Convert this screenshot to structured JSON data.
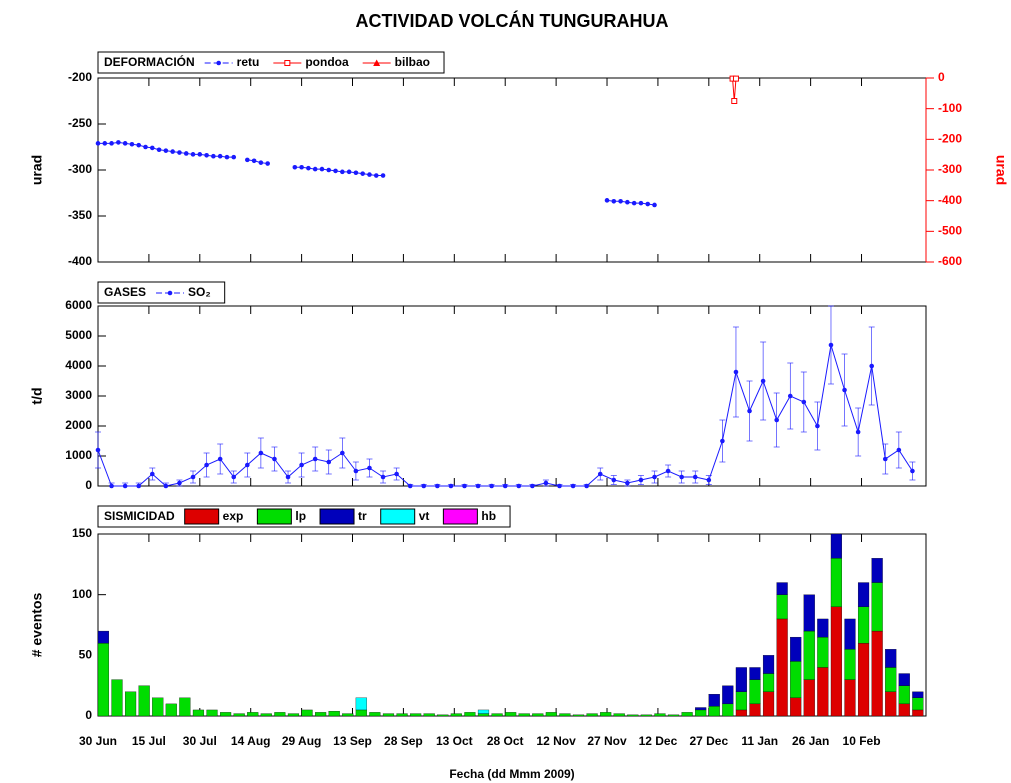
{
  "title": "ACTIVIDAD VOLCÁN TUNGURAHUA",
  "xlabel": "Fecha (dd Mmm 2009)",
  "xlim": [
    0,
    244
  ],
  "xticks": [
    {
      "value": 0,
      "label": "30 Jun"
    },
    {
      "value": 15,
      "label": "15 Jul"
    },
    {
      "value": 30,
      "label": "30 Jul"
    },
    {
      "value": 45,
      "label": "14 Aug"
    },
    {
      "value": 60,
      "label": "29 Aug"
    },
    {
      "value": 75,
      "label": "13 Sep"
    },
    {
      "value": 90,
      "label": "28 Sep"
    },
    {
      "value": 105,
      "label": "13 Oct"
    },
    {
      "value": 120,
      "label": "28 Oct"
    },
    {
      "value": 135,
      "label": "12 Nov"
    },
    {
      "value": 150,
      "label": "27 Nov"
    },
    {
      "value": 165,
      "label": "12 Dec"
    },
    {
      "value": 180,
      "label": "27 Dec"
    },
    {
      "value": 195,
      "label": "11 Jan"
    },
    {
      "value": 210,
      "label": "26 Jan"
    },
    {
      "value": 225,
      "label": "10 Feb"
    }
  ],
  "chart_data": [
    {
      "type": "line",
      "label": "DEFORMACIÓN",
      "ylabel": "urad",
      "y2label": "urad",
      "ylim": [
        -400,
        -200
      ],
      "yticks": [
        -400,
        -350,
        -300,
        -250,
        -200
      ],
      "y2lim": [
        -600,
        0
      ],
      "y2ticks": [
        -600,
        -500,
        -400,
        -300,
        -200,
        -100,
        0
      ],
      "series": [
        {
          "name": "retu",
          "color": "#1a1aff",
          "marker": "circle",
          "x": [
            0,
            2,
            4,
            6,
            8,
            10,
            12,
            14,
            16,
            18,
            20,
            22,
            24,
            26,
            28,
            30,
            32,
            34,
            36,
            38,
            40,
            42,
            44,
            46,
            48,
            50,
            52,
            58,
            60,
            62,
            64,
            66,
            68,
            70,
            72,
            74,
            76,
            78,
            80,
            82,
            84,
            90,
            150,
            152,
            154,
            156,
            158,
            160,
            162,
            164
          ],
          "values": [
            -271,
            -271,
            -271,
            -270,
            -271,
            -272,
            -273,
            -275,
            -276,
            -278,
            -279,
            -280,
            -281,
            -282,
            -283,
            -283,
            -284,
            -285,
            -285,
            -286,
            -286,
            null,
            -289,
            -290,
            -292,
            -293,
            null,
            -297,
            -297,
            -298,
            -299,
            -299,
            -300,
            -301,
            -302,
            -302,
            -303,
            -304,
            -305,
            -306,
            -306,
            null,
            -333,
            -334,
            -334,
            -335,
            -336,
            -336,
            -337,
            -338
          ]
        },
        {
          "name": "pondoa",
          "color": "#ff0000",
          "marker": "square",
          "axis": "y2",
          "x": [
            187,
            187.5,
            188
          ],
          "values": [
            -2,
            -75,
            -2
          ]
        },
        {
          "name": "bilbao",
          "color": "#ff0000",
          "marker": "triangle",
          "axis": "y2",
          "x": [],
          "values": []
        }
      ]
    },
    {
      "type": "line",
      "label": "GASES",
      "ylabel": "t/d",
      "ylim": [
        0,
        6000
      ],
      "yticks": [
        0,
        1000,
        2000,
        3000,
        4000,
        5000,
        6000
      ],
      "series": [
        {
          "name": "SO₂",
          "color": "#1a1aff",
          "marker": "circle",
          "x": [
            0,
            4,
            8,
            12,
            16,
            20,
            24,
            28,
            32,
            36,
            40,
            44,
            48,
            52,
            56,
            60,
            64,
            68,
            72,
            76,
            80,
            84,
            88,
            92,
            96,
            100,
            104,
            108,
            112,
            116,
            120,
            124,
            128,
            132,
            136,
            140,
            144,
            148,
            152,
            156,
            160,
            164,
            168,
            172,
            176,
            180,
            184,
            188,
            192,
            196,
            200,
            204,
            208,
            212,
            216,
            220,
            224,
            228,
            232,
            236,
            240
          ],
          "values": [
            1200,
            0,
            0,
            0,
            400,
            0,
            100,
            300,
            700,
            900,
            300,
            700,
            1100,
            900,
            300,
            700,
            900,
            800,
            1100,
            500,
            600,
            300,
            400,
            0,
            0,
            0,
            0,
            0,
            0,
            0,
            0,
            0,
            0,
            100,
            0,
            0,
            0,
            400,
            200,
            100,
            200,
            300,
            500,
            300,
            300,
            200,
            1500,
            3800,
            2500,
            3500,
            2200,
            3000,
            2800,
            2000,
            4700,
            3200,
            1800,
            4000,
            900,
            1200,
            500
          ],
          "errors": [
            600,
            100,
            100,
            100,
            200,
            100,
            100,
            200,
            400,
            500,
            200,
            400,
            500,
            400,
            200,
            400,
            400,
            400,
            500,
            300,
            300,
            200,
            200,
            50,
            50,
            50,
            50,
            50,
            50,
            50,
            50,
            50,
            50,
            100,
            50,
            50,
            50,
            200,
            150,
            100,
            150,
            200,
            200,
            200,
            200,
            150,
            700,
            1500,
            1000,
            1300,
            900,
            1100,
            1000,
            800,
            1300,
            1200,
            800,
            1300,
            500,
            600,
            300
          ]
        }
      ]
    },
    {
      "type": "bar",
      "label": "SISMICIDAD",
      "ylabel": "# eventos",
      "ylim": [
        0,
        150
      ],
      "yticks": [
        0,
        50,
        100,
        150
      ],
      "x": [
        0,
        4,
        8,
        12,
        16,
        20,
        24,
        28,
        32,
        36,
        40,
        44,
        48,
        52,
        56,
        60,
        64,
        68,
        72,
        76,
        80,
        84,
        88,
        92,
        96,
        100,
        104,
        108,
        112,
        116,
        120,
        124,
        128,
        132,
        136,
        140,
        144,
        148,
        152,
        156,
        160,
        164,
        168,
        172,
        176,
        180,
        184,
        188,
        192,
        196,
        200,
        204,
        208,
        212,
        216,
        220,
        224,
        228,
        232,
        236,
        240
      ],
      "series": [
        {
          "name": "exp",
          "color": "#dd0000",
          "values": [
            0,
            0,
            0,
            0,
            0,
            0,
            0,
            0,
            0,
            0,
            0,
            0,
            0,
            0,
            0,
            0,
            0,
            0,
            0,
            0,
            0,
            0,
            0,
            0,
            0,
            0,
            0,
            0,
            0,
            0,
            0,
            0,
            0,
            0,
            0,
            0,
            0,
            0,
            0,
            0,
            0,
            0,
            0,
            0,
            0,
            0,
            0,
            5,
            10,
            20,
            80,
            15,
            30,
            40,
            90,
            30,
            60,
            70,
            20,
            10,
            5
          ]
        },
        {
          "name": "lp",
          "color": "#00dd00",
          "values": [
            60,
            30,
            20,
            25,
            15,
            10,
            15,
            5,
            5,
            3,
            2,
            3,
            2,
            3,
            2,
            5,
            3,
            4,
            2,
            5,
            3,
            2,
            2,
            2,
            2,
            1,
            2,
            3,
            2,
            2,
            3,
            2,
            2,
            3,
            2,
            1,
            2,
            3,
            2,
            1,
            1,
            2,
            1,
            3,
            5,
            8,
            10,
            15,
            20,
            15,
            20,
            30,
            40,
            25,
            40,
            25,
            30,
            40,
            20,
            15,
            10
          ]
        },
        {
          "name": "tr",
          "color": "#0000bb",
          "values": [
            10,
            0,
            0,
            0,
            0,
            0,
            0,
            0,
            0,
            0,
            0,
            0,
            0,
            0,
            0,
            0,
            0,
            0,
            0,
            0,
            0,
            0,
            0,
            0,
            0,
            0,
            0,
            0,
            0,
            0,
            0,
            0,
            0,
            0,
            0,
            0,
            0,
            0,
            0,
            0,
            0,
            0,
            0,
            0,
            2,
            10,
            15,
            20,
            10,
            15,
            10,
            20,
            30,
            15,
            20,
            25,
            20,
            20,
            15,
            10,
            5
          ]
        },
        {
          "name": "vt",
          "color": "#00ffff",
          "values": [
            0,
            0,
            0,
            0,
            0,
            0,
            0,
            0,
            0,
            0,
            0,
            0,
            0,
            0,
            0,
            0,
            0,
            0,
            0,
            10,
            0,
            0,
            0,
            0,
            0,
            0,
            0,
            0,
            3,
            0,
            0,
            0,
            0,
            0,
            0,
            0,
            0,
            0,
            0,
            0,
            0,
            0,
            0,
            0,
            0,
            0,
            0,
            0,
            0,
            0,
            0,
            0,
            0,
            0,
            0,
            0,
            0,
            0,
            0,
            0,
            0
          ]
        },
        {
          "name": "hb",
          "color": "#ff00ff",
          "values": [
            0,
            0,
            0,
            0,
            0,
            0,
            0,
            0,
            0,
            0,
            0,
            0,
            0,
            0,
            0,
            0,
            0,
            0,
            0,
            0,
            0,
            0,
            0,
            0,
            0,
            0,
            0,
            0,
            0,
            0,
            0,
            0,
            0,
            0,
            0,
            0,
            0,
            0,
            0,
            0,
            0,
            0,
            0,
            0,
            0,
            0,
            0,
            0,
            0,
            0,
            0,
            0,
            0,
            0,
            0,
            0,
            0,
            0,
            0,
            0,
            0
          ]
        }
      ]
    }
  ]
}
